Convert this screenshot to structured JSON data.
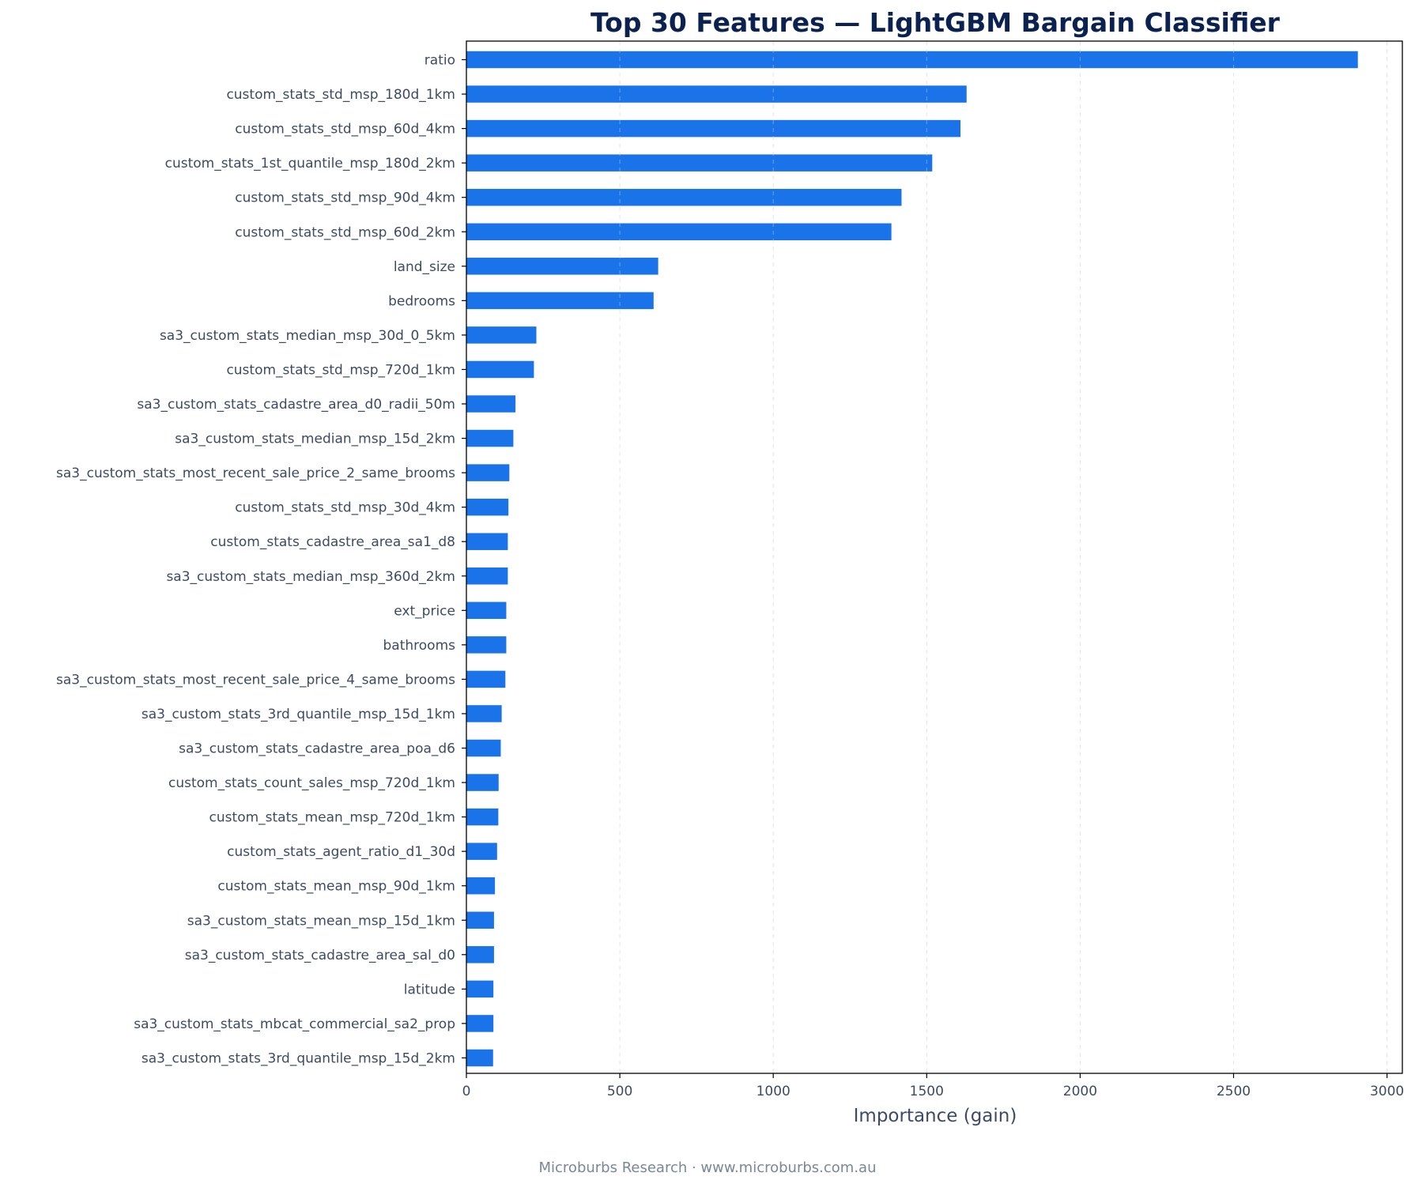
{
  "footer": "Microburbs Research · www.microburbs.com.au",
  "chart_data": {
    "type": "bar",
    "orientation": "horizontal",
    "title": "Top 30 Features — LightGBM Bargain Classifier",
    "xlabel": "Importance (gain)",
    "ylabel": "",
    "xlim": [
      0,
      3050
    ],
    "xticks": [
      0,
      500,
      1000,
      1500,
      2000,
      2500,
      3000
    ],
    "grid": "vertical dashed",
    "bar_color": "#1a73e8",
    "categories": [
      "ratio",
      "custom_stats_std_msp_180d_1km",
      "custom_stats_std_msp_60d_4km",
      "custom_stats_1st_quantile_msp_180d_2km",
      "custom_stats_std_msp_90d_4km",
      "custom_stats_std_msp_60d_2km",
      "land_size",
      "bedrooms",
      "sa3_custom_stats_median_msp_30d_0_5km",
      "custom_stats_std_msp_720d_1km",
      "sa3_custom_stats_cadastre_area_d0_radii_50m",
      "sa3_custom_stats_median_msp_15d_2km",
      "sa3_custom_stats_most_recent_sale_price_2_same_brooms",
      "custom_stats_std_msp_30d_4km",
      "custom_stats_cadastre_area_sa1_d8",
      "sa3_custom_stats_median_msp_360d_2km",
      "ext_price",
      "bathrooms",
      "sa3_custom_stats_most_recent_sale_price_4_same_brooms",
      "sa3_custom_stats_3rd_quantile_msp_15d_1km",
      "sa3_custom_stats_cadastre_area_poa_d6",
      "custom_stats_count_sales_msp_720d_1km",
      "custom_stats_mean_msp_720d_1km",
      "custom_stats_agent_ratio_d1_30d",
      "custom_stats_mean_msp_90d_1km",
      "sa3_custom_stats_mean_msp_15d_1km",
      "sa3_custom_stats_cadastre_area_sal_d0",
      "latitude",
      "sa3_custom_stats_mbcat_commercial_sa2_prop",
      "sa3_custom_stats_3rd_quantile_msp_15d_2km"
    ],
    "values": [
      2905,
      1630,
      1610,
      1518,
      1418,
      1385,
      625,
      610,
      228,
      220,
      160,
      153,
      140,
      137,
      135,
      135,
      130,
      130,
      127,
      115,
      112,
      105,
      104,
      100,
      93,
      90,
      90,
      88,
      88,
      87
    ]
  }
}
